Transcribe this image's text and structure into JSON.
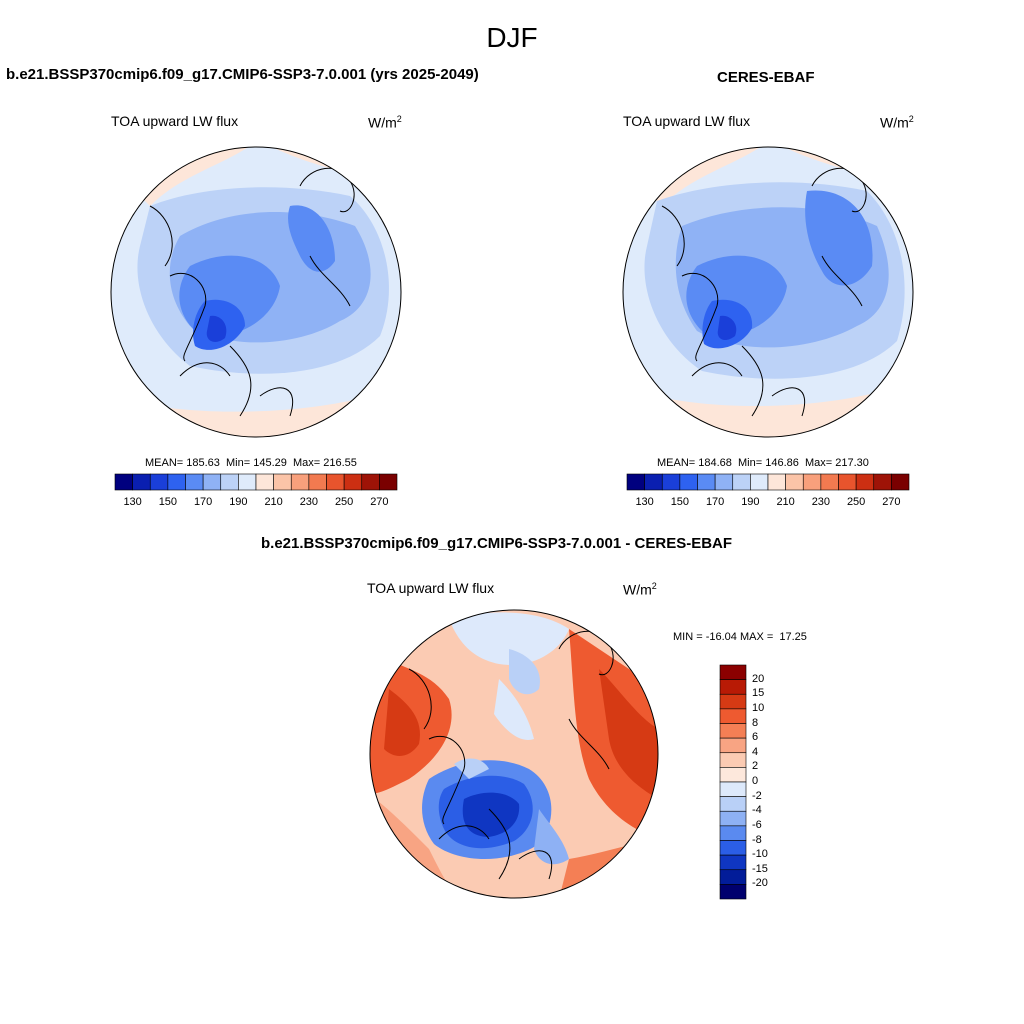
{
  "season": "DJF",
  "panel_model": {
    "title": "b.e21.BSSP370cmip6.f09_g17.CMIP6-SSP3-7.0.001 (yrs 2025-2049)",
    "variable": "TOA upward LW flux",
    "unit_base": "W/m",
    "unit_exp": "2",
    "stats": "MEAN= 185.63  Min= 145.29  Max= 216.55"
  },
  "panel_obs": {
    "title": "CERES-EBAF",
    "variable": "TOA upward LW flux",
    "unit_base": "W/m",
    "unit_exp": "2",
    "stats": "MEAN= 184.68  Min= 146.86  Max= 217.30"
  },
  "panel_diff": {
    "title": "b.e21.BSSP370cmip6.f09_g17.CMIP6-SSP3-7.0.001 - CERES-EBAF",
    "variable": "TOA upward LW flux",
    "unit_base": "W/m",
    "unit_exp": "2",
    "stats": "MIN = -16.04 MAX =  17.25"
  },
  "colorbar_abs": {
    "tick_labels": [
      "130",
      "150",
      "170",
      "190",
      "210",
      "230",
      "250",
      "270"
    ],
    "colors": [
      "#00007f",
      "#0a1fb0",
      "#1a3fd9",
      "#2e62f0",
      "#5a8bf4",
      "#8fb2f5",
      "#bcd2f7",
      "#dfebfb",
      "#fde6d9",
      "#fbc4a8",
      "#f8a07c",
      "#f27a50",
      "#e8542d",
      "#cc2f12",
      "#9e1307",
      "#7a0000"
    ]
  },
  "colorbar_diff": {
    "tick_labels": [
      "20",
      "15",
      "10",
      "8",
      "6",
      "4",
      "2",
      "0",
      "-2",
      "-4",
      "-6",
      "-8",
      "-10",
      "-15",
      "-20"
    ],
    "colors": [
      "#8b0000",
      "#b81a05",
      "#d63a14",
      "#ee5a30",
      "#f47f55",
      "#f8a483",
      "#fbcbb3",
      "#fde8dc",
      "#dde9fb",
      "#b9d0f7",
      "#8eb1f4",
      "#5a8af0",
      "#2b5ee6",
      "#0f36c2",
      "#021c99",
      "#00006e"
    ]
  }
}
